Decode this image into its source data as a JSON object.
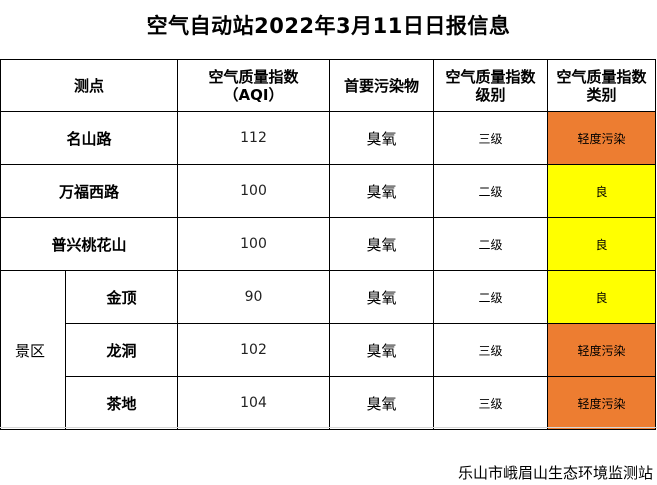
{
  "title": "空气自动站2022年3月11日日报信息",
  "colors": {
    "orange": "#ed7d31",
    "yellow": "#ffff00"
  },
  "headers": {
    "site": "测点",
    "aqi_line1": "空气质量指数",
    "aqi_line2": "（AQI）",
    "pollutant": "首要污染物",
    "level_line1": "空气质量指数",
    "level_line2": "级别",
    "category_line1": "空气质量指数",
    "category_line2": "类别"
  },
  "group_label": "景区",
  "rows": [
    {
      "site": "名山路",
      "aqi": "112",
      "pollutant": "臭氧",
      "level": "三级",
      "category": "轻度污染",
      "color": "orange"
    },
    {
      "site": "万福西路",
      "aqi": "100",
      "pollutant": "臭氧",
      "level": "二级",
      "category": "良",
      "color": "yellow"
    },
    {
      "site": "普兴桃花山",
      "aqi": "100",
      "pollutant": "臭氧",
      "level": "二级",
      "category": "良",
      "color": "yellow"
    },
    {
      "site": "金顶",
      "aqi": "90",
      "pollutant": "臭氧",
      "level": "二级",
      "category": "良",
      "color": "yellow"
    },
    {
      "site": "龙洞",
      "aqi": "102",
      "pollutant": "臭氧",
      "level": "三级",
      "category": "轻度污染",
      "color": "orange"
    },
    {
      "site": "茶地",
      "aqi": "104",
      "pollutant": "臭氧",
      "level": "三级",
      "category": "轻度污染",
      "color": "orange"
    }
  ],
  "footer": "乐山市峨眉山生态环境监测站"
}
